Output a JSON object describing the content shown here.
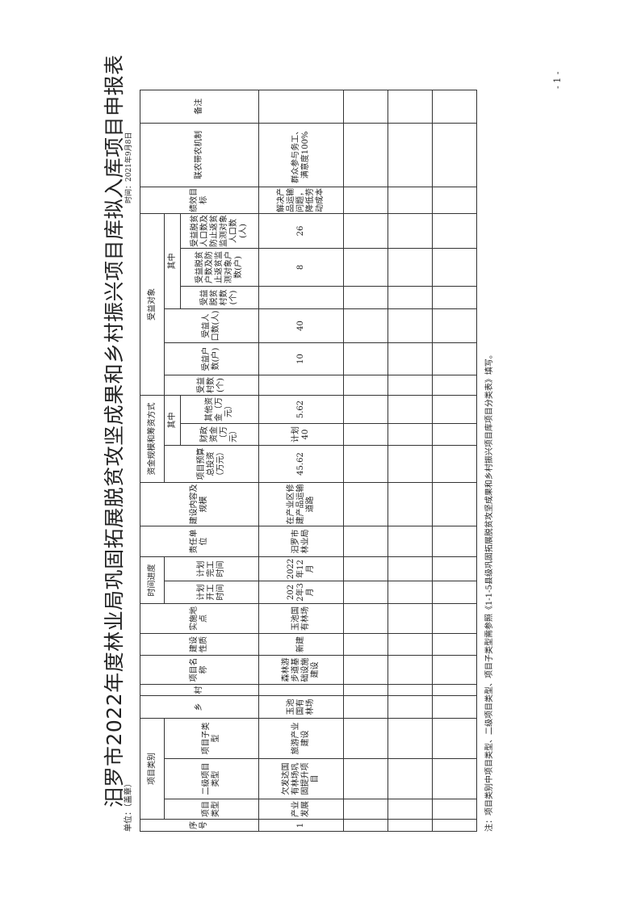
{
  "title": "汨罗市2022年度林业局巩固拓展脱贫攻坚成果和乡村振兴项目库拟入库项目申报表",
  "unit": "单位：（盖章）",
  "date": "时间：2021年9月8日",
  "headers": {
    "seq": "序号",
    "category_group": "项目类别",
    "type": "项目类型",
    "type2": "二级项目类型",
    "subtype": "项目子类型",
    "township": "乡",
    "village": "村",
    "name": "项目名称",
    "nature": "建设性质",
    "location": "实施地点",
    "time_group": "时间进度",
    "start": "计划开工时间",
    "end": "计划完工时间",
    "unit": "责任单位",
    "content": "建设内容及规模",
    "fund_group": "资金规模和筹资方式",
    "total": "项目预算总投资（万元）",
    "fund_among": "其中",
    "fiscal": "财政资金（万元）",
    "other": "其他资金（万元）",
    "benef_group": "受益对象",
    "b_villages": "受益村数(个)",
    "b_households": "受益户数(户)",
    "b_people": "受益人口数(人)",
    "benef_among": "其中",
    "p_villages": "受益脱贫村数(个)",
    "p_households": "受益脱贫户数及防止返贫监测对象户数(户)",
    "p_people": "受益脱贫人口数及防止返贫监测对象人口数(人)",
    "goal": "绩效目标",
    "mechanism": "联农带农机制",
    "remark": "备注"
  },
  "rows": [
    {
      "seq": "1",
      "type": "产业发展",
      "type2": "欠发达国有林场巩固提升项目",
      "subtype": "旅游产业建设",
      "township": "玉池国有林场",
      "village": "",
      "name": "森林游步道基础设施建设",
      "nature": "新建",
      "location": "玉池国有林场",
      "start": "2022年3月",
      "end": "2022年12月",
      "unit": "汨罗市林业局",
      "content": "在产业区修建产品运输道路",
      "total": "45.62",
      "fiscal": "计划40",
      "other": "5.62",
      "b_villages": "",
      "b_households": "10",
      "b_people": "40",
      "p_villages": "",
      "p_households": "8",
      "p_people": "26",
      "goal": "解决产品运输问题，降低劳动成本",
      "mechanism": "群众参与务工、满意度100%",
      "remark": ""
    }
  ],
  "note": "注：项目类别中项目类型、二级项目类型、项目子类型需参照《1-1-5县级巩固拓展脱贫攻坚成果和乡村振兴项目库项目分类表》填写。",
  "page_number": "- 1 -"
}
